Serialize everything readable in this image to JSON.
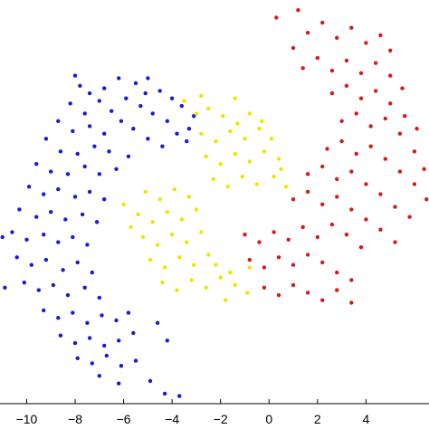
{
  "chart_data": {
    "type": "scatter",
    "title": "",
    "xlabel": "",
    "ylabel": "",
    "xlim": [
      -11.1,
      6.6
    ],
    "ylim": [
      -6.1,
      9.9
    ],
    "x_ticks": [
      -10,
      -8,
      -6,
      -4,
      -2,
      0,
      2,
      4
    ],
    "x_tick_labels": [
      "−10",
      "−8",
      "−6",
      "−4",
      "−2",
      "0",
      "2",
      "4"
    ],
    "grid": false,
    "legend": "none",
    "series": [
      {
        "color": "#1a1ad6",
        "points": [
          [
            -7.8,
            6.5
          ],
          [
            -7.4,
            6.2
          ],
          [
            -6.8,
            6.4
          ],
          [
            -6.2,
            6.8
          ],
          [
            -5.5,
            6.6
          ],
          [
            -5.0,
            6.8
          ],
          [
            -4.5,
            6.3
          ],
          [
            -4.0,
            6.0
          ],
          [
            -3.6,
            5.7
          ],
          [
            -3.1,
            5.3
          ],
          [
            -8.2,
            5.8
          ],
          [
            -7.6,
            5.4
          ],
          [
            -7.0,
            5.9
          ],
          [
            -6.5,
            5.5
          ],
          [
            -5.9,
            6.0
          ],
          [
            -5.3,
            5.7
          ],
          [
            -4.8,
            5.4
          ],
          [
            -4.2,
            5.1
          ],
          [
            -3.8,
            4.6
          ],
          [
            -3.4,
            4.3
          ],
          [
            -8.7,
            5.1
          ],
          [
            -8.1,
            4.7
          ],
          [
            -7.4,
            4.9
          ],
          [
            -6.8,
            4.6
          ],
          [
            -6.1,
            5.1
          ],
          [
            -5.6,
            4.8
          ],
          [
            -5.0,
            4.4
          ],
          [
            -4.4,
            4.1
          ],
          [
            -9.2,
            4.4
          ],
          [
            -8.6,
            3.9
          ],
          [
            -7.9,
            3.8
          ],
          [
            -7.2,
            4.1
          ],
          [
            -6.6,
            3.9
          ],
          [
            -5.8,
            3.7
          ],
          [
            -9.6,
            3.4
          ],
          [
            -9.0,
            3.1
          ],
          [
            -8.3,
            3.0
          ],
          [
            -7.6,
            3.3
          ],
          [
            -7.0,
            3.0
          ],
          [
            -6.3,
            3.2
          ],
          [
            -9.9,
            2.5
          ],
          [
            -9.3,
            2.2
          ],
          [
            -8.7,
            2.4
          ],
          [
            -8.0,
            2.1
          ],
          [
            -7.4,
            2.3
          ],
          [
            -6.8,
            2.0
          ],
          [
            -10.3,
            1.6
          ],
          [
            -9.6,
            1.3
          ],
          [
            -9.0,
            1.5
          ],
          [
            -8.4,
            1.2
          ],
          [
            -7.7,
            1.4
          ],
          [
            -7.1,
            1.1
          ],
          [
            -10.6,
            0.7
          ],
          [
            -10.0,
            0.4
          ],
          [
            -9.3,
            0.6
          ],
          [
            -8.7,
            0.3
          ],
          [
            -8.1,
            0.5
          ],
          [
            -7.5,
            0.2
          ],
          [
            -10.4,
            -0.3
          ],
          [
            -9.8,
            -0.6
          ],
          [
            -9.2,
            -0.4
          ],
          [
            -8.5,
            -0.8
          ],
          [
            -7.9,
            -0.5
          ],
          [
            -7.3,
            -0.9
          ],
          [
            -10.1,
            -1.3
          ],
          [
            -9.5,
            -1.6
          ],
          [
            -8.9,
            -1.4
          ],
          [
            -8.3,
            -1.8
          ],
          [
            -7.6,
            -1.5
          ],
          [
            -7.0,
            -1.9
          ],
          [
            -9.3,
            -2.4
          ],
          [
            -8.7,
            -2.7
          ],
          [
            -8.1,
            -2.5
          ],
          [
            -7.5,
            -2.9
          ],
          [
            -6.9,
            -2.6
          ],
          [
            -6.3,
            -2.8
          ],
          [
            -5.8,
            -2.5
          ],
          [
            -8.6,
            -3.4
          ],
          [
            -8.0,
            -3.7
          ],
          [
            -7.4,
            -3.5
          ],
          [
            -6.8,
            -3.8
          ],
          [
            -6.2,
            -3.6
          ],
          [
            -5.6,
            -3.3
          ],
          [
            -7.9,
            -4.3
          ],
          [
            -7.3,
            -4.5
          ],
          [
            -6.7,
            -4.2
          ],
          [
            -6.1,
            -4.6
          ],
          [
            -5.5,
            -4.4
          ],
          [
            -7.0,
            -5.0
          ],
          [
            -6.2,
            -5.3
          ],
          [
            -4.6,
            -2.9
          ],
          [
            -4.2,
            -3.6
          ],
          [
            -4.9,
            -5.2
          ],
          [
            -4.3,
            -5.7
          ],
          [
            -3.7,
            -5.8
          ],
          [
            -11.0,
            0.5
          ],
          [
            -10.9,
            -1.5
          ],
          [
            -8.0,
            6.9
          ],
          [
            -5.1,
            6.2
          ],
          [
            -3.3,
            4.8
          ]
        ]
      },
      {
        "color": "#e8e800",
        "points": [
          [
            -3.0,
            5.4
          ],
          [
            -2.5,
            5.6
          ],
          [
            -1.9,
            5.3
          ],
          [
            -1.3,
            5.0
          ],
          [
            -0.8,
            5.4
          ],
          [
            -0.3,
            5.1
          ],
          [
            -2.8,
            4.6
          ],
          [
            -2.2,
            4.3
          ],
          [
            -1.6,
            4.7
          ],
          [
            -1.0,
            4.4
          ],
          [
            -0.4,
            4.8
          ],
          [
            0.1,
            4.4
          ],
          [
            -2.6,
            3.7
          ],
          [
            -2.0,
            3.4
          ],
          [
            -1.4,
            3.8
          ],
          [
            -0.8,
            3.5
          ],
          [
            -0.2,
            3.9
          ],
          [
            0.4,
            3.6
          ],
          [
            -2.3,
            2.8
          ],
          [
            -1.7,
            2.5
          ],
          [
            -1.1,
            2.9
          ],
          [
            -0.5,
            2.6
          ],
          [
            0.2,
            2.9
          ],
          [
            0.7,
            2.5
          ],
          [
            -5.1,
            2.3
          ],
          [
            -4.5,
            2.0
          ],
          [
            -3.9,
            2.4
          ],
          [
            -3.3,
            2.1
          ],
          [
            -5.4,
            1.4
          ],
          [
            -4.8,
            1.1
          ],
          [
            -4.2,
            1.5
          ],
          [
            -3.6,
            1.2
          ],
          [
            -3.0,
            1.6
          ],
          [
            -5.2,
            0.5
          ],
          [
            -4.6,
            0.2
          ],
          [
            -4.0,
            0.6
          ],
          [
            -3.4,
            0.3
          ],
          [
            -2.8,
            0.7
          ],
          [
            -4.9,
            -0.4
          ],
          [
            -4.3,
            -0.7
          ],
          [
            -3.7,
            -0.3
          ],
          [
            -3.1,
            -0.6
          ],
          [
            -2.5,
            -0.2
          ],
          [
            -4.4,
            -1.3
          ],
          [
            -3.8,
            -1.6
          ],
          [
            -3.2,
            -1.2
          ],
          [
            -2.6,
            -1.5
          ],
          [
            -2.0,
            -1.1
          ],
          [
            -1.4,
            -1.4
          ],
          [
            -0.9,
            -1.7
          ],
          [
            -2.2,
            -0.6
          ],
          [
            -1.6,
            -0.9
          ],
          [
            -0.8,
            -0.7
          ],
          [
            -2.8,
            6.1
          ],
          [
            -1.4,
            6.0
          ],
          [
            0.5,
            3.2
          ],
          [
            -6.0,
            1.8
          ],
          [
            -5.7,
            0.9
          ],
          [
            -3.5,
            5.9
          ],
          [
            -1.8,
            -2.0
          ]
        ]
      },
      {
        "color": "#d61a1a",
        "points": [
          [
            1.0,
            8.0
          ],
          [
            1.6,
            8.6
          ],
          [
            2.2,
            9.0
          ],
          [
            2.8,
            8.4
          ],
          [
            3.4,
            8.8
          ],
          [
            4.0,
            8.2
          ],
          [
            4.6,
            8.5
          ],
          [
            5.0,
            7.9
          ],
          [
            1.4,
            7.2
          ],
          [
            2.0,
            7.6
          ],
          [
            2.6,
            7.1
          ],
          [
            3.2,
            7.5
          ],
          [
            3.8,
            7.0
          ],
          [
            4.4,
            7.4
          ],
          [
            5.0,
            6.9
          ],
          [
            5.5,
            6.4
          ],
          [
            2.6,
            6.2
          ],
          [
            3.2,
            6.5
          ],
          [
            3.8,
            6.0
          ],
          [
            4.4,
            6.3
          ],
          [
            5.0,
            5.8
          ],
          [
            5.6,
            5.3
          ],
          [
            6.1,
            4.8
          ],
          [
            3.0,
            5.1
          ],
          [
            3.6,
            5.4
          ],
          [
            4.2,
            4.9
          ],
          [
            4.8,
            5.2
          ],
          [
            5.4,
            4.6
          ],
          [
            6.0,
            3.9
          ],
          [
            6.4,
            3.2
          ],
          [
            2.4,
            4.0
          ],
          [
            3.0,
            4.3
          ],
          [
            3.6,
            3.8
          ],
          [
            4.2,
            4.1
          ],
          [
            4.8,
            3.6
          ],
          [
            5.4,
            3.1
          ],
          [
            6.0,
            2.6
          ],
          [
            1.6,
            3.0
          ],
          [
            2.2,
            3.3
          ],
          [
            2.8,
            2.8
          ],
          [
            3.4,
            3.1
          ],
          [
            4.0,
            2.6
          ],
          [
            4.6,
            2.2
          ],
          [
            5.2,
            1.7
          ],
          [
            5.8,
            1.3
          ],
          [
            1.0,
            2.0
          ],
          [
            1.6,
            2.3
          ],
          [
            2.2,
            1.8
          ],
          [
            2.8,
            2.1
          ],
          [
            3.4,
            1.6
          ],
          [
            4.0,
            1.2
          ],
          [
            4.6,
            0.8
          ],
          [
            5.2,
            0.3
          ],
          [
            -1.0,
            0.6
          ],
          [
            -0.4,
            0.3
          ],
          [
            0.2,
            0.7
          ],
          [
            0.8,
            0.4
          ],
          [
            1.4,
            0.9
          ],
          [
            2.0,
            0.5
          ],
          [
            2.6,
            1.0
          ],
          [
            3.2,
            0.6
          ],
          [
            3.8,
            0.1
          ],
          [
            -0.8,
            -0.4
          ],
          [
            -0.2,
            -0.7
          ],
          [
            0.4,
            -0.3
          ],
          [
            1.0,
            -0.6
          ],
          [
            1.6,
            -0.2
          ],
          [
            2.2,
            -0.5
          ],
          [
            2.8,
            -0.9
          ],
          [
            3.4,
            -1.2
          ],
          [
            -0.2,
            -1.5
          ],
          [
            0.4,
            -1.8
          ],
          [
            1.0,
            -1.4
          ],
          [
            1.6,
            -1.7
          ],
          [
            2.2,
            -2.0
          ],
          [
            2.8,
            -1.6
          ],
          [
            3.4,
            -2.1
          ],
          [
            0.3,
            9.2
          ],
          [
            1.2,
            9.5
          ],
          [
            6.5,
            2.0
          ]
        ]
      }
    ]
  }
}
